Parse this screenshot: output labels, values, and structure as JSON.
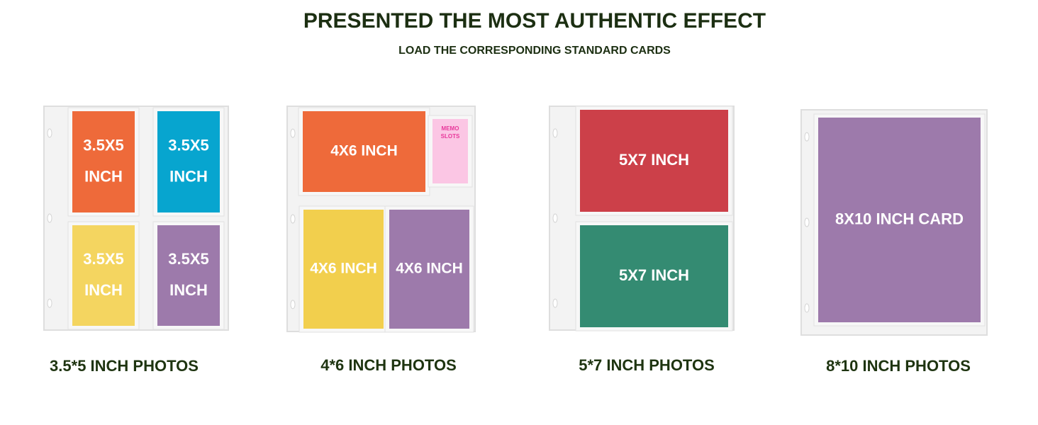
{
  "header": {
    "title": "PRESENTED THE MOST AUTHENTIC EFFECT",
    "subtitle": "LOAD THE CORRESPONDING STANDARD CARDS"
  },
  "panels": [
    {
      "caption": "3.5*5 INCH PHOTOS",
      "cards": [
        {
          "lines": [
            "3.5X5",
            "INCH"
          ]
        },
        {
          "lines": [
            "3.5X5",
            "INCH"
          ]
        },
        {
          "lines": [
            "3.5X5",
            "INCH"
          ]
        },
        {
          "lines": [
            "3.5X5",
            "INCH"
          ]
        }
      ]
    },
    {
      "caption": "4*6 INCH PHOTOS",
      "cards": [
        {
          "lines": [
            "4X6 INCH"
          ]
        },
        {
          "lines": [
            "MEMO",
            "SLOTS"
          ]
        },
        {
          "lines": [
            "4X6 INCH"
          ]
        },
        {
          "lines": [
            "4X6 INCH"
          ]
        }
      ]
    },
    {
      "caption": "5*7 INCH PHOTOS",
      "cards": [
        {
          "lines": [
            "5X7 INCH"
          ]
        },
        {
          "lines": [
            "5X7 INCH"
          ]
        }
      ]
    },
    {
      "caption": "8*10 INCH PHOTOS",
      "cards": [
        {
          "lines": [
            "8X10 INCH CARD"
          ]
        }
      ]
    }
  ]
}
